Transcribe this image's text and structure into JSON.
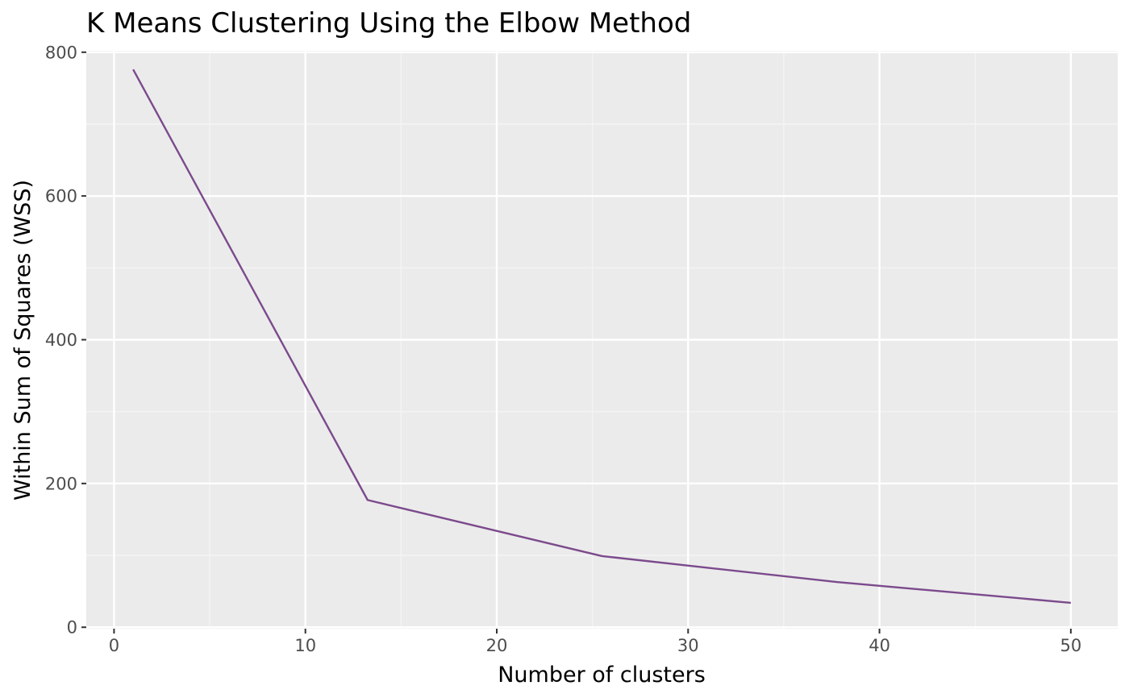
{
  "chart_data": {
    "type": "line",
    "title": "K Means Clustering Using the Elbow Method",
    "xlabel": "Number of clusters",
    "ylabel": "Within Sum of Squares (WSS)",
    "xlim": [
      -1.45,
      52.45
    ],
    "ylim": [
      -2,
      802
    ],
    "x_ticks": [
      0,
      10,
      20,
      30,
      40,
      50
    ],
    "y_ticks": [
      0,
      200,
      400,
      600,
      800
    ],
    "x_tick_labels": [
      "0",
      "10",
      "20",
      "30",
      "40",
      "50"
    ],
    "y_tick_labels": [
      "0",
      "200",
      "400",
      "600",
      "800"
    ],
    "grid": true,
    "legend": "none",
    "series": [
      {
        "x": [
          1,
          13.25,
          25.5,
          37.75,
          50
        ],
        "y": [
          776,
          177,
          99,
          63,
          34
        ],
        "color": "#7b4a8c"
      }
    ],
    "colors": {
      "panel_background": "#ebebeb",
      "grid_major": "#ffffff",
      "grid_minor": "#f5f5f5",
      "tick_mark": "#333333",
      "tick_text": "#4d4d4d",
      "axis_text": "#000000"
    }
  }
}
